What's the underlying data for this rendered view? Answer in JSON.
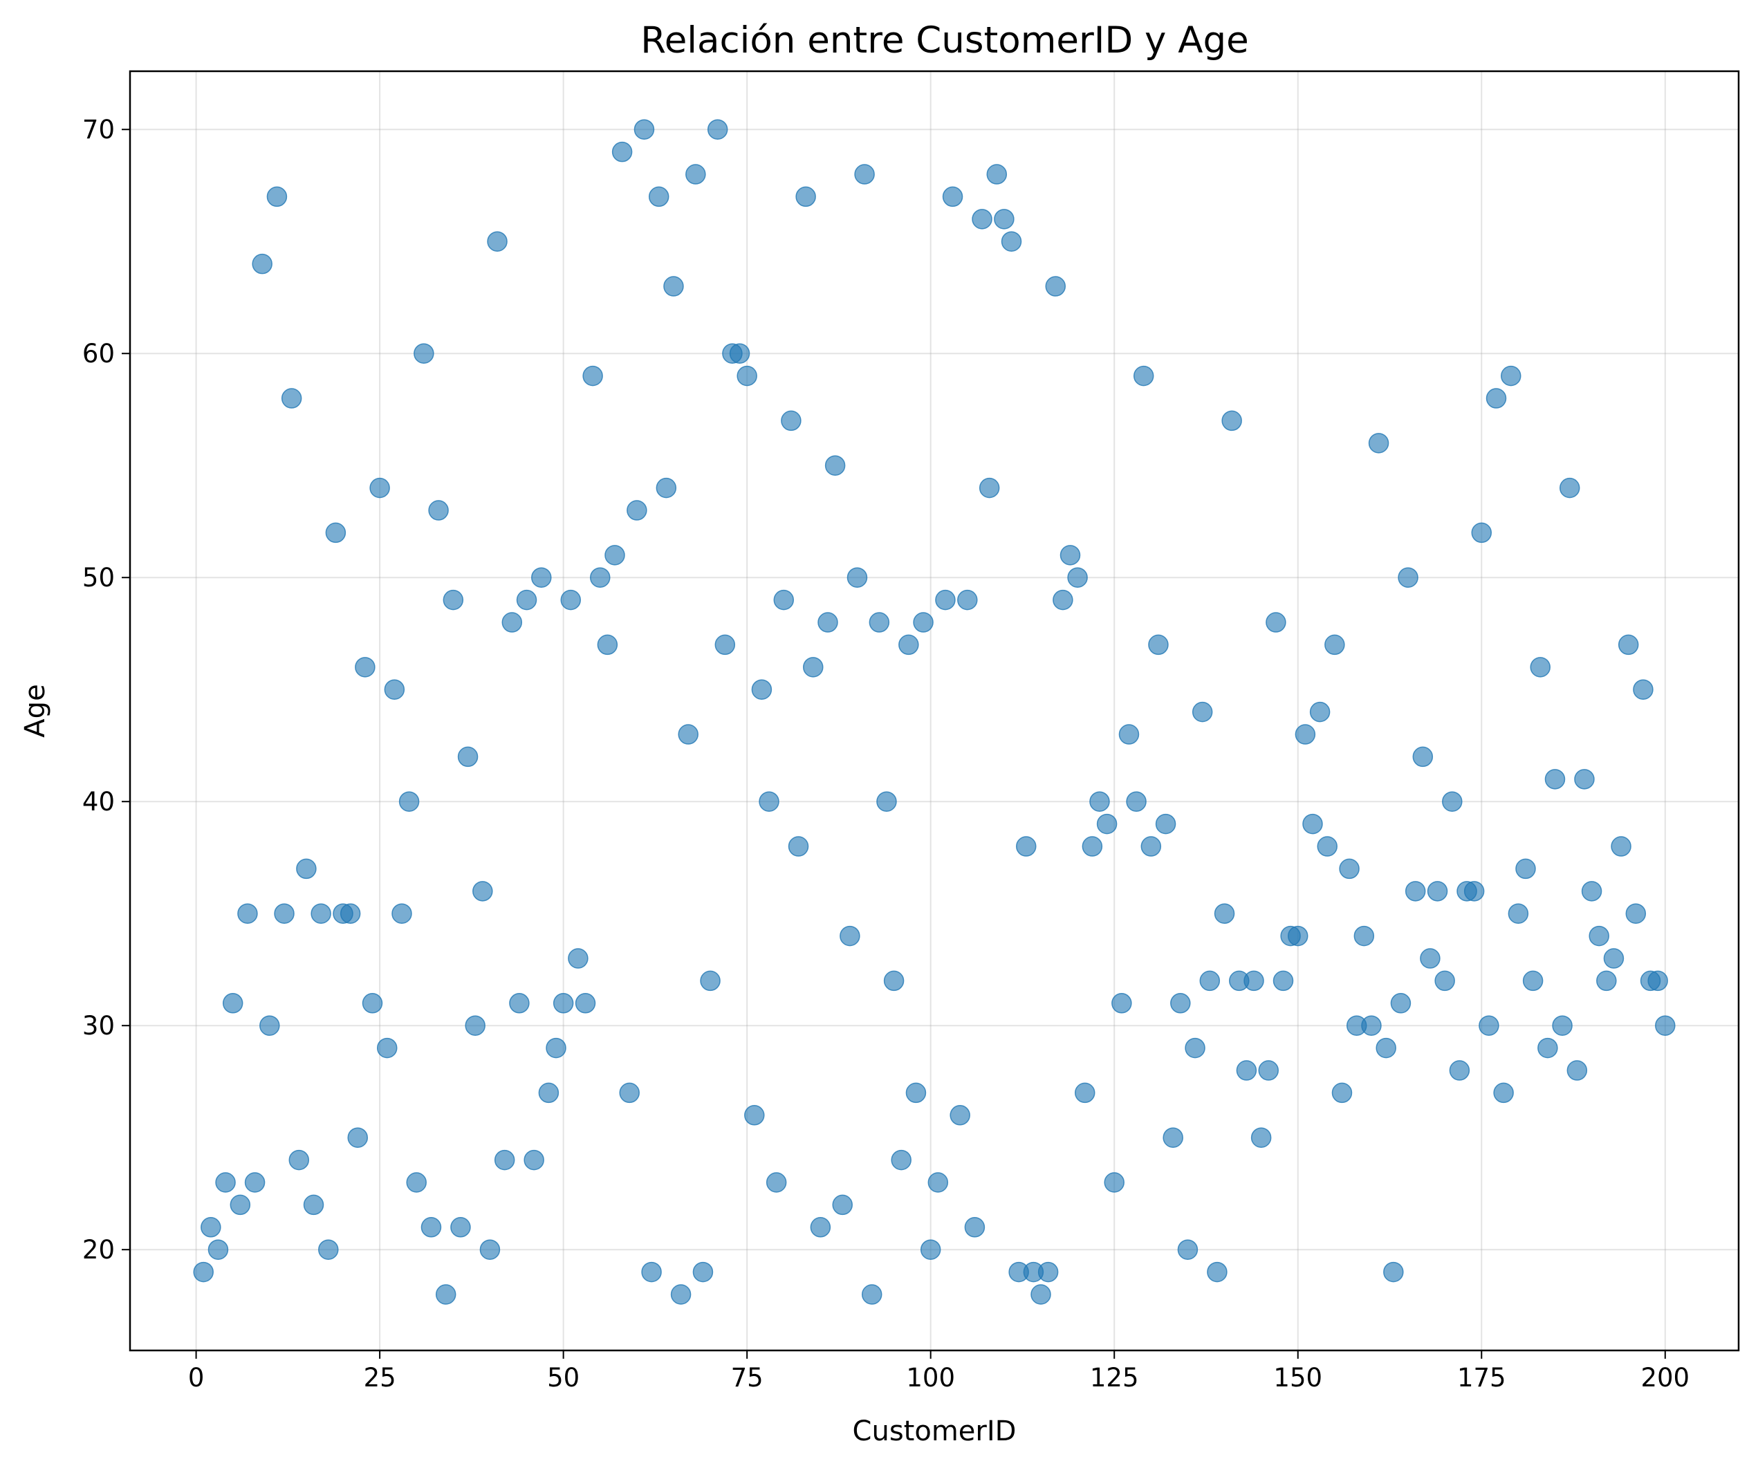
{
  "chart_data": {
    "type": "scatter",
    "title": "Relación entre CustomerID y Age",
    "xlabel": "CustomerID",
    "ylabel": "Age",
    "xlim": [
      -9,
      210
    ],
    "ylim": [
      15.5,
      72.6
    ],
    "xticks": [
      0,
      25,
      50,
      75,
      100,
      125,
      150,
      175,
      200
    ],
    "yticks": [
      20,
      30,
      40,
      50,
      60,
      70
    ],
    "grid": true,
    "color": "#1f77b4",
    "x": [
      1,
      2,
      3,
      4,
      5,
      6,
      7,
      8,
      9,
      10,
      11,
      12,
      13,
      14,
      15,
      16,
      17,
      18,
      19,
      20,
      21,
      22,
      23,
      24,
      25,
      26,
      27,
      28,
      29,
      30,
      31,
      32,
      33,
      34,
      35,
      36,
      37,
      38,
      39,
      40,
      41,
      42,
      43,
      44,
      45,
      46,
      47,
      48,
      49,
      50,
      51,
      52,
      53,
      54,
      55,
      56,
      57,
      58,
      59,
      60,
      61,
      62,
      63,
      64,
      65,
      66,
      67,
      68,
      69,
      70,
      71,
      72,
      73,
      74,
      75,
      76,
      77,
      78,
      79,
      80,
      81,
      82,
      83,
      84,
      85,
      86,
      87,
      88,
      89,
      90,
      91,
      92,
      93,
      94,
      95,
      96,
      97,
      98,
      99,
      100,
      101,
      102,
      103,
      104,
      105,
      106,
      107,
      108,
      109,
      110,
      111,
      112,
      113,
      114,
      115,
      116,
      117,
      118,
      119,
      120,
      121,
      122,
      123,
      124,
      125,
      126,
      127,
      128,
      129,
      130,
      131,
      132,
      133,
      134,
      135,
      136,
      137,
      138,
      139,
      140,
      141,
      142,
      143,
      144,
      145,
      146,
      147,
      148,
      149,
      150,
      151,
      152,
      153,
      154,
      155,
      156,
      157,
      158,
      159,
      160,
      161,
      162,
      163,
      164,
      165,
      166,
      167,
      168,
      169,
      170,
      171,
      172,
      173,
      174,
      175,
      176,
      177,
      178,
      179,
      180,
      181,
      182,
      183,
      184,
      185,
      186,
      187,
      188,
      189,
      190,
      191,
      192,
      193,
      194,
      195,
      196,
      197,
      198,
      199,
      200
    ],
    "y": [
      19,
      21,
      20,
      23,
      31,
      22,
      35,
      23,
      64,
      30,
      67,
      35,
      58,
      24,
      37,
      22,
      35,
      20,
      52,
      35,
      35,
      25,
      46,
      31,
      54,
      29,
      45,
      35,
      40,
      23,
      60,
      21,
      53,
      18,
      49,
      21,
      42,
      30,
      36,
      20,
      65,
      24,
      48,
      31,
      49,
      24,
      50,
      27,
      29,
      31,
      49,
      33,
      31,
      59,
      50,
      47,
      51,
      69,
      27,
      53,
      70,
      19,
      67,
      54,
      63,
      18,
      43,
      68,
      19,
      32,
      70,
      47,
      60,
      60,
      59,
      26,
      45,
      40,
      23,
      49,
      57,
      38,
      67,
      46,
      21,
      48,
      55,
      22,
      34,
      50,
      68,
      18,
      48,
      40,
      32,
      24,
      47,
      27,
      48,
      20,
      23,
      49,
      67,
      26,
      49,
      21,
      66,
      54,
      68,
      66,
      65,
      19,
      38,
      19,
      18,
      19,
      63,
      49,
      51,
      50,
      27,
      38,
      40,
      39,
      23,
      31,
      43,
      40,
      59,
      38,
      47,
      39,
      25,
      31,
      20,
      29,
      44,
      32,
      19,
      35,
      57,
      32,
      28,
      32,
      25,
      28,
      48,
      32,
      34,
      34,
      43,
      39,
      44,
      38,
      47,
      27,
      37,
      30,
      34,
      30,
      56,
      29,
      19,
      31,
      50,
      36,
      42,
      33,
      36,
      32,
      40,
      28,
      36,
      36,
      52,
      30,
      58,
      27,
      59,
      35,
      37,
      32,
      46,
      29,
      41,
      30,
      54,
      28,
      41,
      36,
      34,
      32,
      33,
      38,
      47,
      35,
      45,
      32,
      32,
      30
    ]
  }
}
